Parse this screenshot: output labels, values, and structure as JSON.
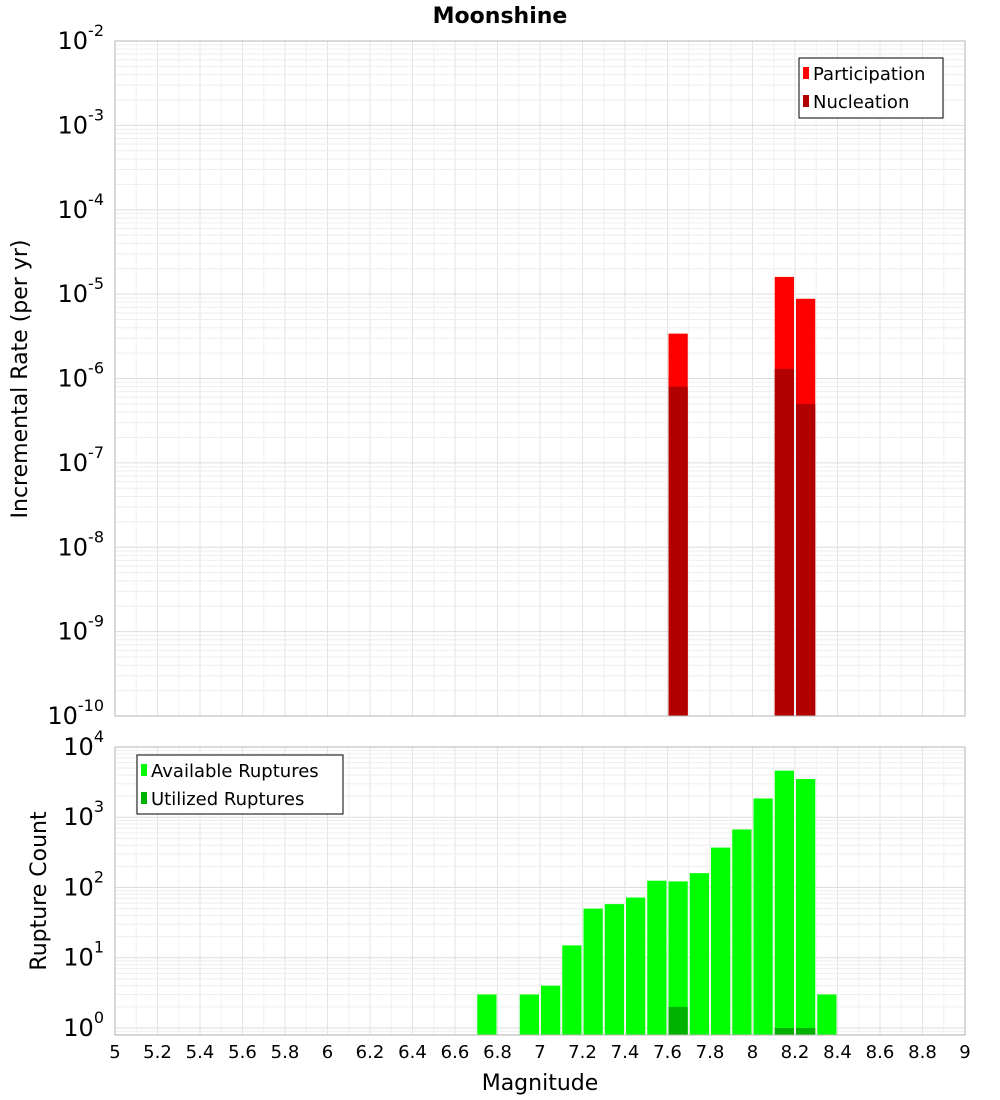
{
  "chart_data": [
    {
      "type": "bar",
      "title": "Moonshine",
      "xlabel": "Magnitude",
      "ylabel": "Incremental Rate (per yr)",
      "yscale": "log",
      "xlim": [
        5,
        9
      ],
      "ylim_exp": [
        -10,
        -2
      ],
      "ytick_base": "10",
      "yticks_exp": [
        "-10",
        "-9",
        "-8",
        "-7",
        "-6",
        "-5",
        "-4",
        "-3",
        "-2"
      ],
      "grid": true,
      "legend_position": "top-right",
      "legend": [
        {
          "label": "Participation",
          "color": "#ff0000"
        },
        {
          "label": "Nucleation",
          "color": "#b20000"
        }
      ],
      "bin_width": 0.1,
      "series": [
        {
          "name": "Participation",
          "color": "#ff0000",
          "x": [
            7.65,
            8.15,
            8.25
          ],
          "values": [
            3.4e-06,
            1.6e-05,
            8.8e-06
          ]
        },
        {
          "name": "Nucleation",
          "color": "#b20000",
          "x": [
            7.65,
            8.15,
            8.25
          ],
          "values": [
            8e-07,
            1.3e-06,
            5e-07
          ]
        }
      ]
    },
    {
      "type": "bar",
      "xlabel": "Magnitude",
      "ylabel": "Rupture Count",
      "yscale": "log",
      "xlim": [
        5,
        9
      ],
      "ylim_exp": [
        -0.1,
        4
      ],
      "ytick_base": "10",
      "yticks_exp": [
        "0",
        "1",
        "2",
        "3",
        "4"
      ],
      "xticks": [
        "5",
        "5.2",
        "5.4",
        "5.6",
        "5.8",
        "6",
        "6.2",
        "6.4",
        "6.6",
        "6.8",
        "7",
        "7.2",
        "7.4",
        "7.6",
        "7.8",
        "8",
        "8.2",
        "8.4",
        "8.6",
        "8.8",
        "9"
      ],
      "grid": true,
      "legend_position": "top-left",
      "legend": [
        {
          "label": "Available Ruptures",
          "color": "#00ff00"
        },
        {
          "label": "Utilized Ruptures",
          "color": "#00b200"
        }
      ],
      "bin_width": 0.1,
      "series": [
        {
          "name": "Available Ruptures",
          "color": "#00ff00",
          "x": [
            6.75,
            6.95,
            7.05,
            7.15,
            7.25,
            7.35,
            7.45,
            7.55,
            7.65,
            7.75,
            7.85,
            7.95,
            8.05,
            8.15,
            8.25,
            8.35
          ],
          "values": [
            3,
            3,
            4,
            15,
            50,
            58,
            72,
            125,
            122,
            160,
            370,
            670,
            1850,
            4600,
            3500,
            3
          ]
        },
        {
          "name": "Utilized Ruptures",
          "color": "#00b200",
          "x": [
            7.65,
            8.15,
            8.25
          ],
          "values": [
            2,
            1,
            1
          ]
        }
      ]
    }
  ]
}
